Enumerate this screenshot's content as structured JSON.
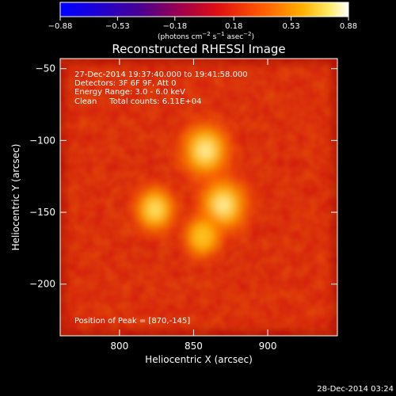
{
  "colorbar": {
    "ticks": [
      -0.88,
      -0.53,
      -0.18,
      0.18,
      0.53,
      0.88
    ],
    "tick_labels": [
      "−0.88",
      "−0.53",
      "−0.18",
      "0.18",
      "0.53",
      "0.88"
    ],
    "units_main": "(photons cm",
    "units_sup1": "−2",
    "units_mid": " s",
    "units_sup2": "−1",
    "units_end": " asec",
    "units_sup3": "−2",
    "units_close": ")"
  },
  "chart_data": {
    "type": "heatmap",
    "title": "Reconstructed RHESSI Image",
    "xlabel": "Heliocentric X (arcsec)",
    "ylabel": "Heliocentric Y (arcsec)",
    "xlim": [
      760,
      947
    ],
    "ylim": [
      -236,
      -43
    ],
    "x_ticks": [
      800,
      850,
      900
    ],
    "x_tick_labels": [
      "800",
      "850",
      "900"
    ],
    "y_ticks": [
      -50,
      -100,
      -150,
      -200
    ],
    "y_tick_labels": [
      "−50",
      "−100",
      "−150",
      "−200"
    ],
    "colorscale_range": [
      -0.88,
      0.88
    ],
    "sources": [
      {
        "x": 858,
        "y": -107,
        "peak": 0.8,
        "sigma": 11
      },
      {
        "x": 824,
        "y": -148,
        "peak": 0.72,
        "sigma": 9
      },
      {
        "x": 870,
        "y": -145,
        "peak": 0.88,
        "sigma": 11
      },
      {
        "x": 856,
        "y": -167,
        "peak": 0.5,
        "sigma": 8
      }
    ],
    "annotations": [
      "27-Dec-2014 19:37:40.000 to 19:41:58.000",
      "Detectors: 3F 6F 9F, Att 0",
      "Energy Range: 3.0 - 6.0 keV",
      "Clean     Total counts: 6.11E+04"
    ],
    "peak_label": "Position of Peak = [870,-145]"
  },
  "footer": {
    "date": "28-Dec-2014 03:24"
  }
}
